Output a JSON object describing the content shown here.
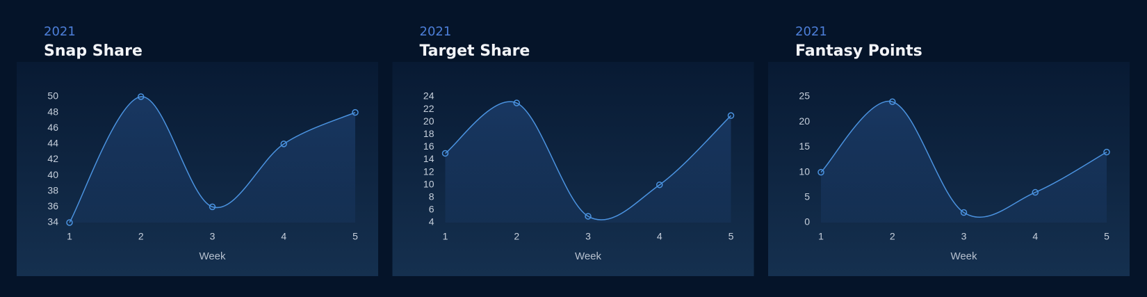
{
  "chart_data": [
    {
      "type": "line",
      "subtitle": "2021",
      "title": "Snap Share",
      "xlabel": "Week",
      "x": [
        1,
        2,
        3,
        4,
        5
      ],
      "xlim": [
        1,
        5
      ],
      "xticks": [
        1,
        2,
        3,
        4,
        5
      ],
      "values": [
        34,
        50,
        36,
        44,
        48
      ],
      "color": "#4b93e0",
      "ylim": [
        34,
        50
      ],
      "yticks": [
        34,
        36,
        38,
        40,
        42,
        44,
        46,
        48,
        50
      ]
    },
    {
      "type": "line",
      "subtitle": "2021",
      "title": "Target Share",
      "xlabel": "Week",
      "x": [
        1,
        2,
        3,
        4,
        5
      ],
      "xlim": [
        1,
        5
      ],
      "xticks": [
        1,
        2,
        3,
        4,
        5
      ],
      "values": [
        15,
        23,
        5,
        10,
        21
      ],
      "color": "#4b93e0",
      "ylim": [
        4,
        24
      ],
      "yticks": [
        4,
        6,
        8,
        10,
        12,
        14,
        16,
        18,
        20,
        22,
        24
      ]
    },
    {
      "type": "line",
      "subtitle": "2021",
      "title": "Fantasy Points",
      "xlabel": "Week",
      "x": [
        1,
        2,
        3,
        4,
        5
      ],
      "xlim": [
        1,
        5
      ],
      "xticks": [
        1,
        2,
        3,
        4,
        5
      ],
      "values": [
        10,
        24,
        2,
        6,
        14
      ],
      "color": "#4b93e0",
      "ylim": [
        0,
        25
      ],
      "yticks": [
        0,
        5,
        10,
        15,
        20,
        25
      ]
    }
  ]
}
